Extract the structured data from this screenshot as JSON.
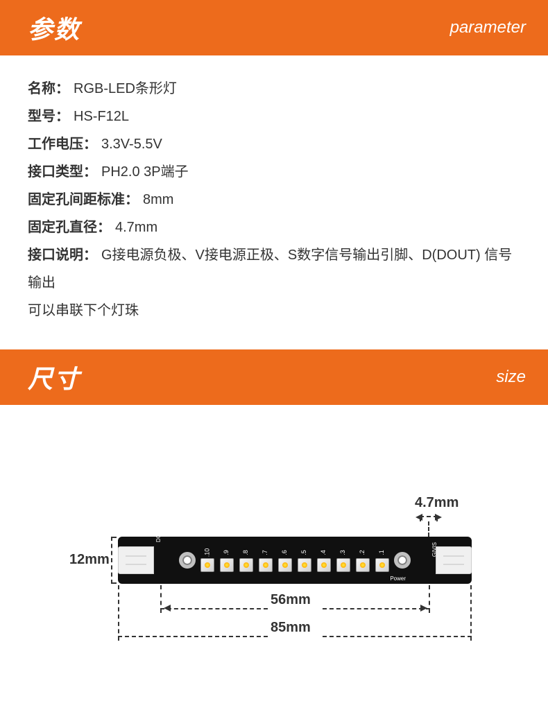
{
  "colors": {
    "banner_bg": "#ed6b1c",
    "banner_text": "#ffffff",
    "body_text": "#333333",
    "pcb_bg": "#101010",
    "connector_bg": "#f0f0f0",
    "hole_border": "#c0c0c0"
  },
  "sections": {
    "params": {
      "title_cn": "参数",
      "title_en": "parameter"
    },
    "size": {
      "title_cn": "尺寸",
      "title_en": "size"
    }
  },
  "params": [
    {
      "label": "名称：",
      "value": "RGB-LED条形灯"
    },
    {
      "label": "型号：",
      "value": "HS-F12L"
    },
    {
      "label": "工作电压：",
      "value": "3.3V-5.5V"
    },
    {
      "label": "接口类型：",
      "value": "PH2.0 3P端子"
    },
    {
      "label": "固定孔间距标准：",
      "value": "8mm"
    },
    {
      "label": "固定孔直径：",
      "value": "4.7mm"
    },
    {
      "label": "接口说明：",
      "value": "G接电源负极、V接电源正极、S数字信号输出引脚、D(DOUT) 信号输出",
      "note": "可以串联下个灯珠"
    }
  ],
  "dimensions": {
    "height": "12mm",
    "hole_diameter": "4.7mm",
    "hole_spacing": "56mm",
    "total_length": "85mm"
  },
  "pcb": {
    "led_count": 10,
    "led_labels": [
      ".10",
      ".9",
      ".8",
      ".7",
      ".6",
      ".5",
      ".4",
      ".3",
      ".2",
      ".1"
    ],
    "power_label": "Power",
    "left_label": "DOUT|V|G",
    "right_label": "G|V|S"
  },
  "typography": {
    "banner_cn_size": 36,
    "banner_en_size": 24,
    "body_size": 20,
    "dim_size": 20
  }
}
